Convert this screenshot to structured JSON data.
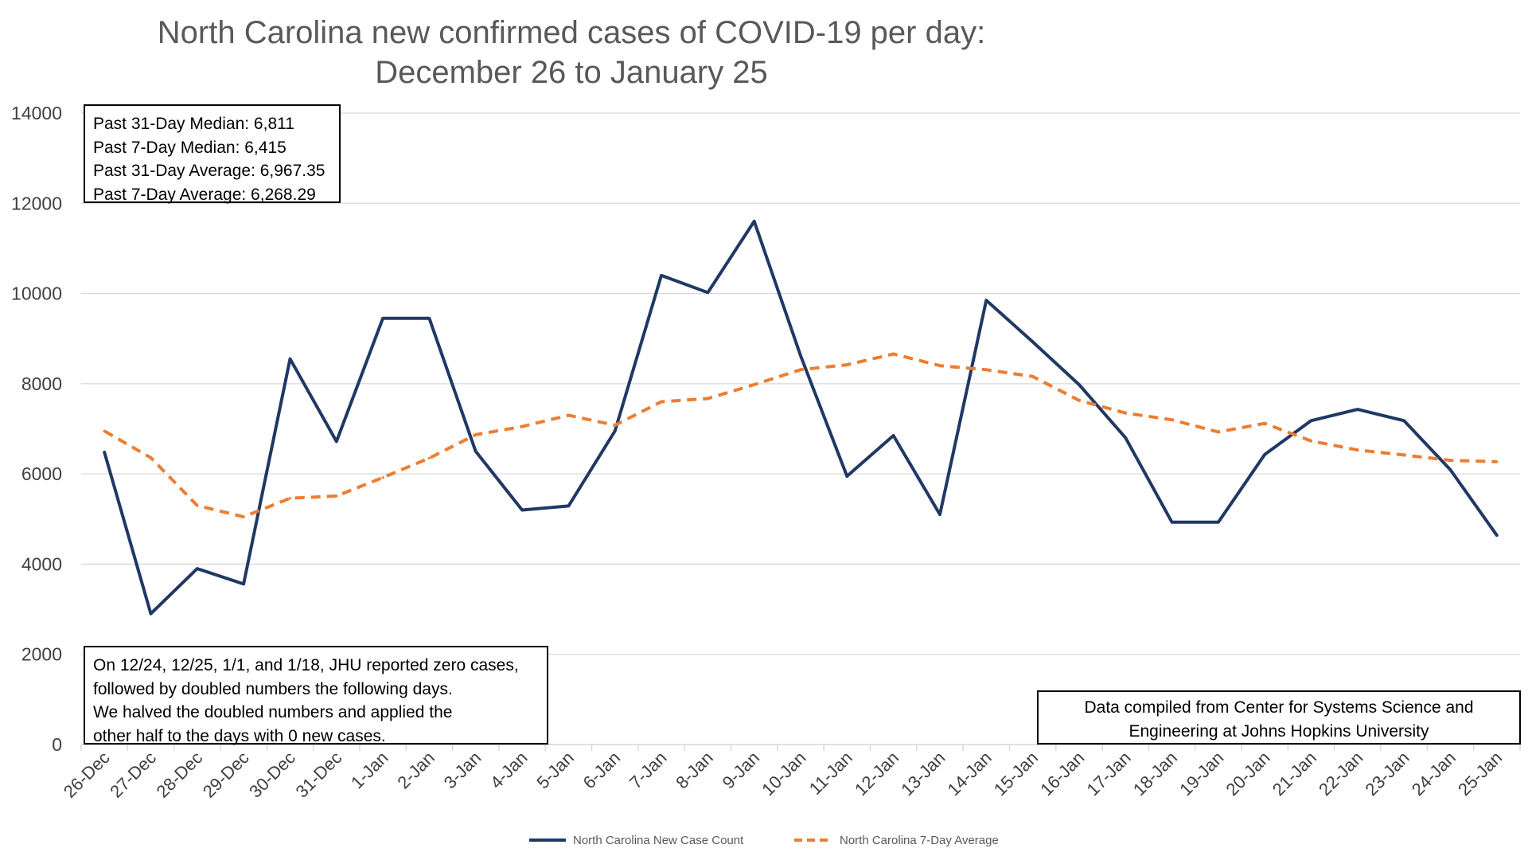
{
  "chart_data": {
    "type": "line",
    "title": [
      "North Carolina new confirmed cases of COVID-19 per day:",
      "December 26 to January 25"
    ],
    "categories": [
      "26-Dec",
      "27-Dec",
      "28-Dec",
      "29-Dec",
      "30-Dec",
      "31-Dec",
      "1-Jan",
      "2-Jan",
      "3-Jan",
      "4-Jan",
      "5-Jan",
      "6-Jan",
      "7-Jan",
      "8-Jan",
      "9-Jan",
      "10-Jan",
      "11-Jan",
      "12-Jan",
      "13-Jan",
      "14-Jan",
      "15-Jan",
      "16-Jan",
      "17-Jan",
      "18-Jan",
      "19-Jan",
      "20-Jan",
      "21-Jan",
      "22-Jan",
      "23-Jan",
      "24-Jan",
      "25-Jan"
    ],
    "series": [
      {
        "name": "North Carolina New Case Count",
        "color": "#203864",
        "style": "solid",
        "values": [
          6480,
          2900,
          3900,
          3560,
          8550,
          6720,
          9450,
          9450,
          6500,
          5200,
          5290,
          6950,
          10400,
          10020,
          11600,
          8620,
          5950,
          6850,
          5100,
          9850,
          8930,
          7980,
          6800,
          4930,
          4930,
          6430,
          7180,
          7430,
          7180,
          6090,
          4640
        ]
      },
      {
        "name": "North Carolina 7-Day Average",
        "color": "#ed7d31",
        "style": "dashed",
        "values": [
          6950,
          6360,
          5300,
          5050,
          5460,
          5510,
          5920,
          6350,
          6870,
          7050,
          7300,
          7080,
          7600,
          7670,
          7980,
          8310,
          8420,
          8660,
          8400,
          8310,
          8160,
          7630,
          7350,
          7200,
          6930,
          7120,
          6730,
          6530,
          6420,
          6300,
          6270
        ]
      }
    ],
    "yticks": [
      "14000",
      "12000",
      "10000",
      "8000",
      "6000",
      "4000",
      "2000",
      "0"
    ],
    "ylim": [
      0,
      14000
    ],
    "grid": true,
    "legend_position": "bottom-center",
    "annotations": {
      "stats": [
        "Past 31-Day Median: 6,811",
        "Past 7-Day Median: 6,415",
        "Past 31-Day Average: 6,967.35",
        "Past 7-Day Average: 6,268.29"
      ],
      "zero_note": [
        "On 12/24, 12/25, 1/1, and 1/18, JHU reported zero cases,",
        "followed by doubled numbers the following days.",
        "We halved the doubled numbers and applied the",
        "other half to the days with 0 new cases."
      ],
      "source": [
        "Data compiled from Center for Systems Science and",
        "Engineering at Johns Hopkins University"
      ]
    }
  }
}
